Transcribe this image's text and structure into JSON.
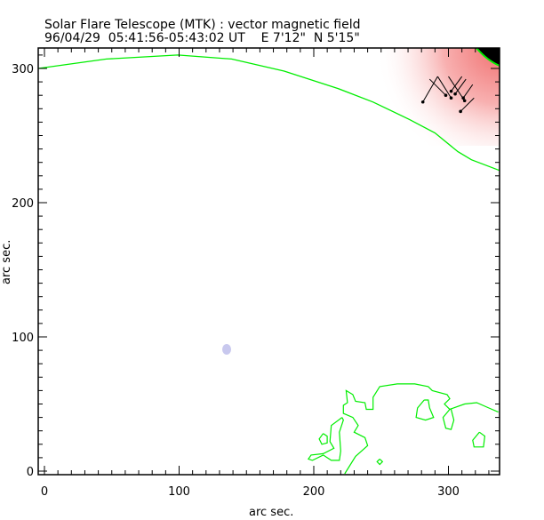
{
  "chart_data": {
    "type": "line",
    "title": "Solar Flare Telescope (MTK) : vector magnetic field",
    "subtitle": "96/04/29  05:41:56-05:43:02 UT    E 7'12\"  N 5'15\"",
    "xlabel": "arc sec.",
    "ylabel": "arc sec.",
    "xlim": [
      -4.6,
      337
    ],
    "ylim": [
      -2.6,
      311
    ],
    "xticks": [
      "0",
      "100",
      "200",
      "300"
    ],
    "yticks": [
      "0",
      "100",
      "200",
      "300"
    ],
    "limb_color": "#00ee00",
    "limb": [
      [
        -4.6,
        300
      ],
      [
        46,
        307
      ],
      [
        99,
        310
      ],
      [
        139,
        307
      ],
      [
        178,
        298
      ],
      [
        218,
        285
      ],
      [
        244,
        275
      ],
      [
        271,
        262
      ],
      [
        290,
        252
      ],
      [
        307,
        238
      ],
      [
        317,
        232
      ],
      [
        338,
        224
      ]
    ],
    "contours": [
      [
        [
          223,
          -2
        ],
        [
          231,
          11
        ],
        [
          240,
          19
        ],
        [
          238,
          25
        ],
        [
          230,
          29
        ],
        [
          233,
          34
        ],
        [
          229,
          40
        ],
        [
          222,
          43
        ],
        [
          222,
          49
        ],
        [
          225,
          51
        ],
        [
          224,
          60
        ],
        [
          229,
          57
        ],
        [
          231,
          52
        ],
        [
          238,
          51
        ],
        [
          239,
          46
        ],
        [
          244,
          46
        ],
        [
          244,
          55
        ],
        [
          249,
          63
        ],
        [
          262,
          65
        ],
        [
          275,
          65
        ],
        [
          285,
          63
        ],
        [
          288,
          60
        ],
        [
          299,
          57
        ],
        [
          301,
          54
        ],
        [
          297,
          50
        ],
        [
          301,
          46
        ],
        [
          312,
          50
        ],
        [
          321,
          51
        ],
        [
          330,
          47
        ],
        [
          337,
          44
        ]
      ],
      [
        [
          221,
          40
        ],
        [
          213,
          34
        ],
        [
          212,
          22
        ],
        [
          215,
          17
        ],
        [
          207,
          13
        ],
        [
          198,
          12
        ],
        [
          196,
          9
        ],
        [
          199,
          8
        ],
        [
          207,
          12
        ],
        [
          213,
          8
        ],
        [
          219,
          8
        ],
        [
          220,
          15
        ],
        [
          219,
          29
        ],
        [
          222,
          38
        ],
        [
          221,
          40
        ]
      ],
      [
        [
          207,
          28
        ],
        [
          204,
          24
        ],
        [
          206,
          20
        ],
        [
          210,
          21
        ],
        [
          210,
          26
        ],
        [
          207,
          28
        ]
      ],
      [
        [
          282,
          53
        ],
        [
          277,
          47
        ],
        [
          276,
          40
        ],
        [
          283,
          38
        ],
        [
          289,
          40
        ],
        [
          286,
          47
        ],
        [
          285,
          53
        ],
        [
          282,
          53
        ]
      ],
      [
        [
          301,
          46
        ],
        [
          296,
          40
        ],
        [
          298,
          32
        ],
        [
          302,
          31
        ],
        [
          304,
          38
        ],
        [
          302,
          46
        ]
      ],
      [
        [
          323,
          29
        ],
        [
          318,
          23
        ],
        [
          319,
          18
        ],
        [
          326,
          18
        ],
        [
          327,
          26
        ],
        [
          323,
          29
        ]
      ],
      [
        [
          249,
          9
        ],
        [
          247,
          7
        ],
        [
          249,
          5
        ],
        [
          251,
          7
        ],
        [
          249,
          9
        ]
      ]
    ],
    "vectors": [
      [
        [
          292,
          294
        ],
        [
          281,
          275
        ]
      ],
      [
        [
          292,
          294
        ],
        [
          302,
          278
        ]
      ],
      [
        [
          300,
          294
        ],
        [
          312,
          276
        ]
      ],
      [
        [
          310,
          294
        ],
        [
          302,
          283
        ]
      ],
      [
        [
          313,
          292
        ],
        [
          305,
          281
        ]
      ],
      [
        [
          318,
          288
        ],
        [
          311,
          278
        ]
      ],
      [
        [
          319,
          278
        ],
        [
          309,
          268
        ]
      ],
      [
        [
          286,
          292
        ],
        [
          298,
          280
        ]
      ]
    ]
  }
}
